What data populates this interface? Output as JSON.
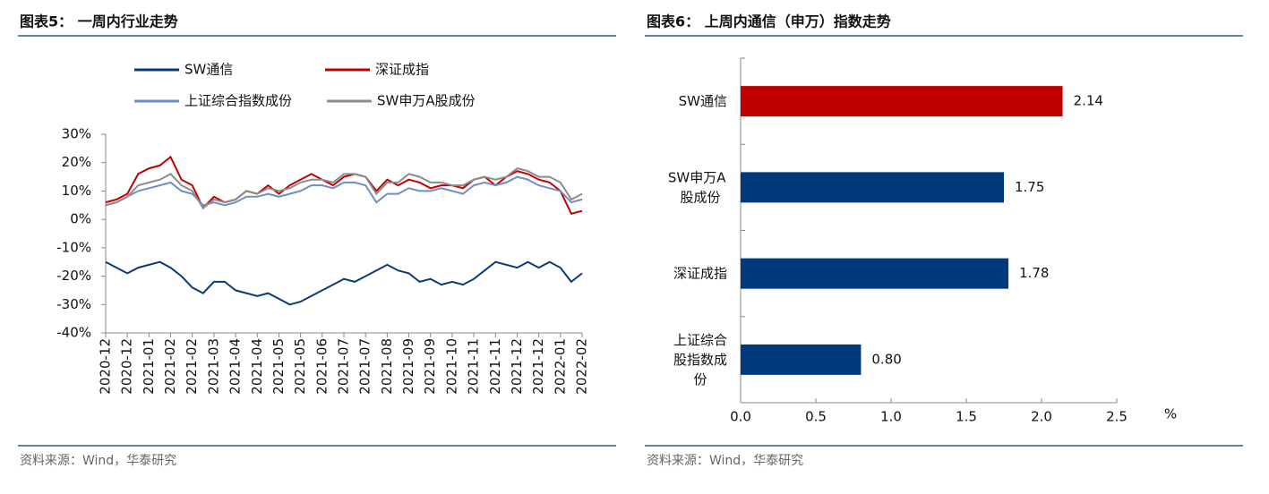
{
  "chart_data": [
    {
      "type": "line",
      "title": "图表5：  一周内行业走势",
      "source": "资料来源：Wind，华泰研究",
      "categories": [
        "2020-12",
        null,
        "2020-12",
        null,
        "2021-01",
        null,
        "2021-02",
        null,
        "2021-02",
        null,
        "2021-03",
        null,
        "2021-04",
        null,
        "2021-04",
        null,
        "2021-05",
        null,
        "2021-05",
        null,
        "2021-06",
        null,
        "2021-07",
        null,
        "2021-07",
        null,
        "2021-08",
        null,
        "2021-09",
        null,
        "2021-09",
        null,
        "2021-10",
        null,
        "2021-11",
        null,
        "2021-11",
        null,
        "2021-12",
        null,
        "2021-12",
        null,
        "2022-01",
        null,
        "2022-02"
      ],
      "ylim": [
        -40,
        30
      ],
      "yticks": [
        {
          "value": -40,
          "label": "-40%"
        },
        {
          "value": -30,
          "label": "-30%"
        },
        {
          "value": -20,
          "label": "-20%"
        },
        {
          "value": -10,
          "label": "-10%"
        },
        {
          "value": 0,
          "label": "0%"
        },
        {
          "value": 10,
          "label": "10%"
        },
        {
          "value": 20,
          "label": "20%"
        },
        {
          "value": 30,
          "label": "30%"
        }
      ],
      "series": [
        {
          "name": "SW通信",
          "color": "#0b3a7a",
          "values": [
            -15,
            -17,
            -19,
            -17,
            -16,
            -15,
            -17,
            -20,
            -24,
            -26,
            -22,
            -22,
            -25,
            -26,
            -27,
            -26,
            -28,
            -30,
            -29,
            -27,
            -25,
            -23,
            -21,
            -22,
            -20,
            -18,
            -16,
            -18,
            -19,
            -22,
            -21,
            -23,
            -22,
            -23,
            -21,
            -18,
            -15,
            -16,
            -17,
            -15,
            -17,
            -15,
            -17,
            -22,
            -19
          ]
        },
        {
          "name": "深证成指",
          "color": "#c00000",
          "values": [
            6,
            7,
            9,
            16,
            18,
            19,
            22,
            14,
            12,
            4,
            8,
            6,
            7,
            10,
            9,
            12,
            9,
            12,
            14,
            16,
            14,
            12,
            15,
            16,
            15,
            10,
            14,
            12,
            14,
            13,
            11,
            12,
            12,
            11,
            14,
            15,
            12,
            15,
            17,
            16,
            14,
            13,
            10,
            2,
            3
          ]
        },
        {
          "name": "上证综合指数成份",
          "color": "#6f8fc4",
          "values": [
            5,
            6,
            8,
            10,
            11,
            12,
            13,
            10,
            9,
            5,
            6,
            5,
            6,
            8,
            8,
            9,
            8,
            9,
            10,
            12,
            12,
            11,
            13,
            13,
            12,
            6,
            9,
            9,
            11,
            10,
            10,
            11,
            10,
            9,
            12,
            13,
            12,
            13,
            15,
            14,
            12,
            11,
            10,
            6,
            7
          ]
        },
        {
          "name": "SW申万A股成份",
          "color": "#8c8c8c",
          "values": [
            5,
            6,
            8,
            12,
            13,
            14,
            16,
            12,
            10,
            4,
            7,
            6,
            7,
            10,
            9,
            11,
            10,
            11,
            13,
            14,
            14,
            13,
            16,
            16,
            15,
            9,
            13,
            13,
            16,
            15,
            13,
            13,
            12,
            12,
            14,
            15,
            14,
            15,
            18,
            17,
            15,
            15,
            13,
            7,
            9
          ]
        }
      ]
    },
    {
      "type": "hbar",
      "title": "图表6：  上周内通信（申万）指数走势",
      "source": "资料来源：Wind，华泰研究",
      "categories": [
        "SW通信",
        "SW申万A股成份",
        "深证成指",
        "上证综合股指数成份"
      ],
      "values": [
        2.14,
        1.75,
        1.78,
        0.8
      ],
      "value_labels": [
        "2.14",
        "1.75",
        "1.78",
        "0.80"
      ],
      "colors": [
        "#c00000",
        "#003a7d",
        "#003a7d",
        "#003a7d"
      ],
      "xlim": [
        0,
        2.5
      ],
      "xticks": [
        {
          "value": 0,
          "label": "0.0"
        },
        0.5,
        {
          "value": 1,
          "label": "1.0"
        },
        1.5,
        {
          "value": 2,
          "label": "2.0"
        },
        2.5
      ],
      "x_unit": "%"
    }
  ]
}
